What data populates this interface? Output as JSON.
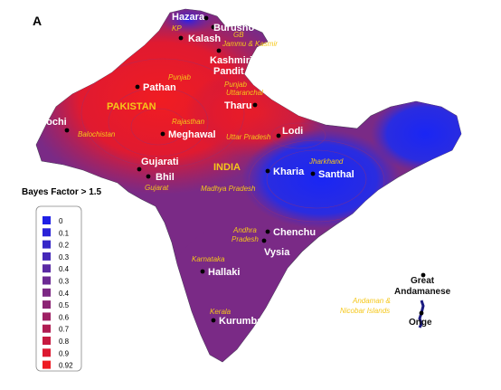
{
  "panel_label": "A",
  "threshold_label": "Bayes Factor > 1.5",
  "legend": {
    "items": [
      {
        "label": "0",
        "color": "#1f1fe6"
      },
      {
        "label": "0.1",
        "color": "#2a22d8"
      },
      {
        "label": "0.2",
        "color": "#3626c8"
      },
      {
        "label": "0.3",
        "color": "#4528b8"
      },
      {
        "label": "0.4",
        "color": "#5a2aa4"
      },
      {
        "label": "0.3",
        "color": "#6c2a94"
      },
      {
        "label": "0.4",
        "color": "#7c2884"
      },
      {
        "label": "0.5",
        "color": "#8c2474"
      },
      {
        "label": "0.6",
        "color": "#9e2064"
      },
      {
        "label": "0.7",
        "color": "#b01c52"
      },
      {
        "label": "0.8",
        "color": "#c61a40"
      },
      {
        "label": "0.9",
        "color": "#dc1830"
      },
      {
        "label": "0.92",
        "color": "#ee1a22"
      }
    ]
  },
  "countries": {
    "pakistan": "PAKISTAN",
    "india": "INDIA"
  },
  "regions": {
    "kp": "KP",
    "gb": "GB",
    "jammu_kashmir": "Jammu & Kasmir",
    "punjab_pk": "Punjab",
    "punjab_in": "Punjab",
    "uttaranchal": "Uttaranchal",
    "balochistan": "Balochistan",
    "rajasthan": "Rajasthan",
    "uttar_pradesh": "Uttar Pradesh",
    "jharkhand": "Jharkhand",
    "gujarat": "Gujarat",
    "madhya_pradesh": "Madhya Pradesh",
    "andhra": "Andhra",
    "pradesh": "Pradesh",
    "karnataka": "Karnataka",
    "kerala": "Kerala",
    "andaman_line1": "Andaman &",
    "andaman_line2": "Nicobar Islands"
  },
  "populations": {
    "hazara": "Hazara",
    "burusho": "Burusho",
    "kalash": "Kalash",
    "kashmiri_line1": "Kashmiri",
    "kashmiri_line2": "Pandit",
    "pathan": "Pathan",
    "tharu": "Tharu",
    "baloch": "Balochi",
    "meghawal": "Meghawal",
    "lodi": "Lodi",
    "gujarati": "Gujarati",
    "bhil": "Bhil",
    "kharia": "Kharia",
    "santhal": "Santhal",
    "chenchu": "Chenchu",
    "vysia": "Vysia",
    "hallaki": "Hallaki",
    "kurumba": "Kurumba",
    "great_line1": "Great",
    "great_line2": "Andamanese",
    "onge": "Onge"
  },
  "palette": {
    "red": "#e8192c",
    "purple": "#7a2a86",
    "blue": "#1e2ef0",
    "label": "#f5c71a"
  }
}
